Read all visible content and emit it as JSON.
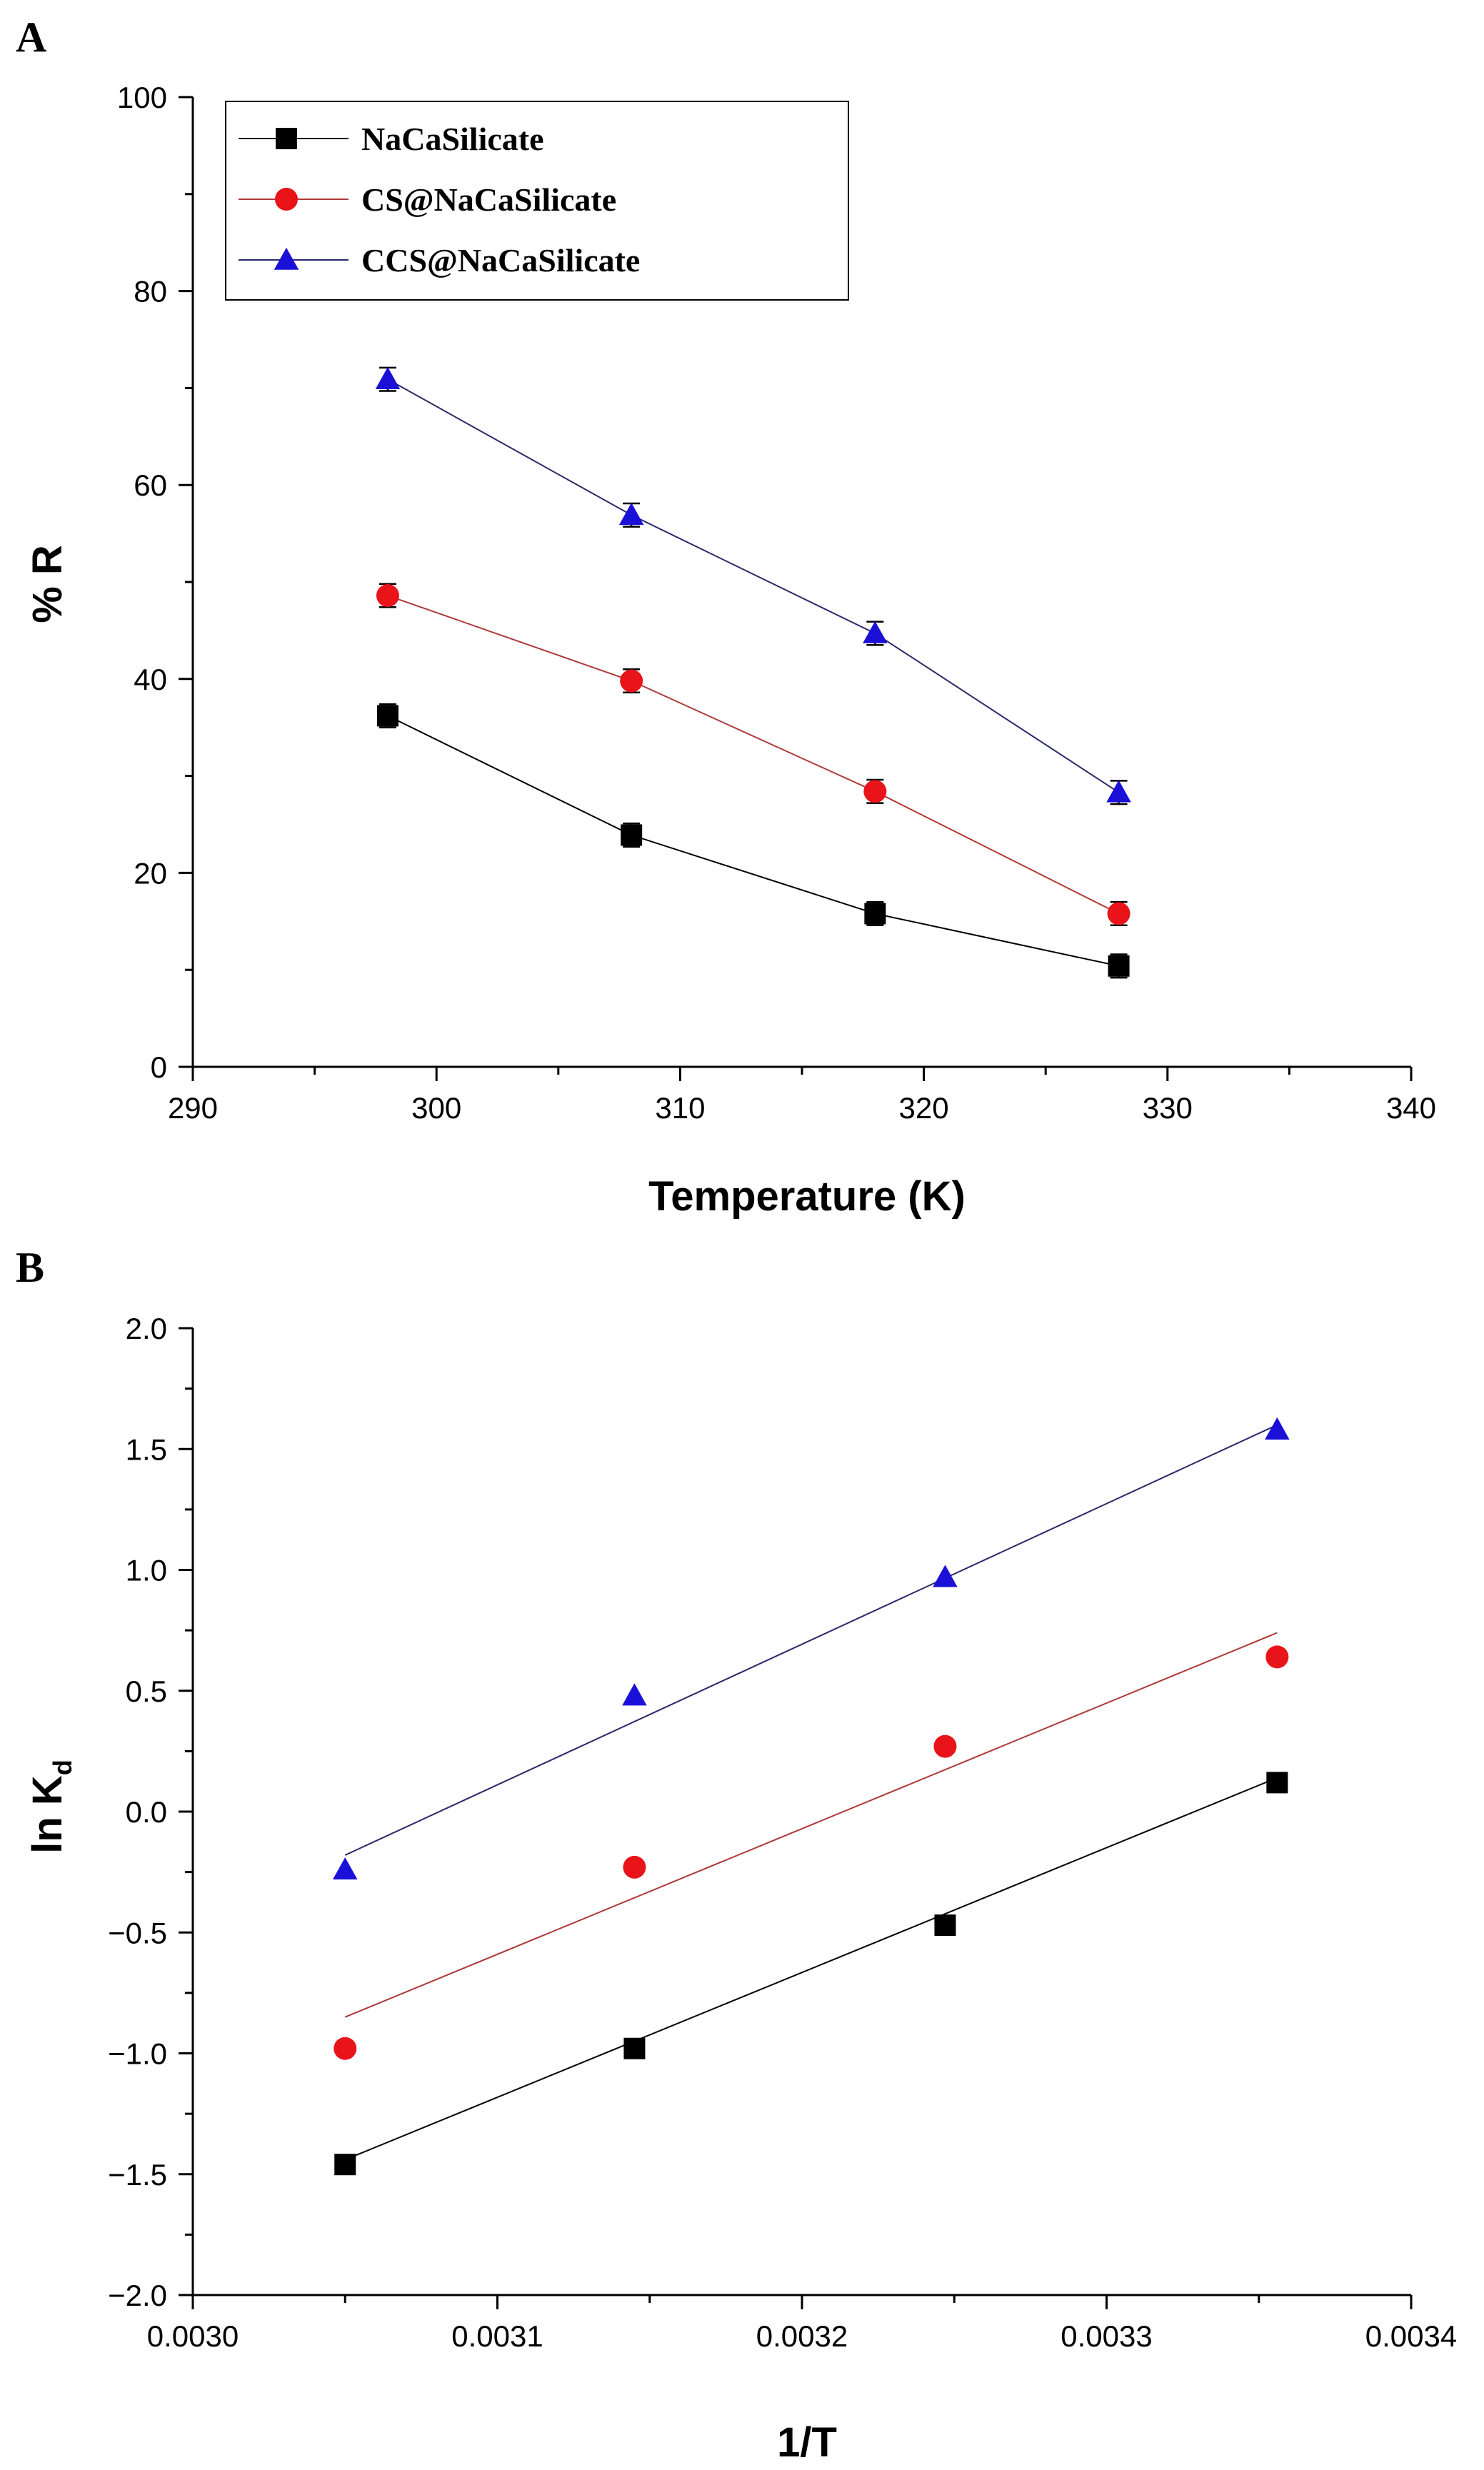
{
  "chart_data": [
    {
      "panel": "A",
      "type": "line",
      "xlabel": "Temperature (K)",
      "ylabel": "% R",
      "xlim": [
        290,
        340
      ],
      "ylim": [
        0,
        100
      ],
      "xticks": [
        290,
        300,
        310,
        320,
        330,
        340
      ],
      "yticks": [
        0,
        20,
        40,
        60,
        80,
        100
      ],
      "xtick_labels": [
        "290",
        "300",
        "310",
        "320",
        "330",
        "340"
      ],
      "ytick_labels": [
        "0",
        "20",
        "40",
        "60",
        "80",
        "100"
      ],
      "x": [
        298,
        308,
        318,
        328
      ],
      "legend_position": "top-left",
      "series": [
        {
          "name": "NaCaSilicate",
          "marker": "square",
          "color": "#000000",
          "line_color": "#000000",
          "values": [
            36.2,
            23.9,
            15.8,
            10.4
          ],
          "error": [
            1.2,
            1.2,
            1.2,
            1.2
          ]
        },
        {
          "name": "CS@NaCaSilicate",
          "marker": "circle",
          "color": "#e8141a",
          "line_color": "#b03a3a",
          "values": [
            48.6,
            39.8,
            28.4,
            15.8
          ],
          "error": [
            1.2,
            1.2,
            1.2,
            1.2
          ]
        },
        {
          "name": "CCS@NaCaSilicate",
          "marker": "triangle",
          "color": "#1a10d8",
          "line_color": "#2a2a6a",
          "values": [
            70.9,
            56.9,
            44.7,
            28.3
          ],
          "error": [
            1.2,
            1.2,
            1.2,
            1.2
          ]
        }
      ]
    },
    {
      "panel": "B",
      "type": "scatter",
      "xlabel": "1/T",
      "ylabel": "ln K",
      "ylabel_subscript": "d",
      "xlim": [
        0.003,
        0.0034
      ],
      "ylim": [
        -2.0,
        2.0
      ],
      "xticks": [
        0.003,
        0.0031,
        0.0032,
        0.0033,
        0.0034
      ],
      "yticks": [
        -2.0,
        -1.5,
        -1.0,
        -0.5,
        0.0,
        0.5,
        1.0,
        1.5,
        2.0
      ],
      "xtick_labels": [
        "0.0030",
        "0.0031",
        "0.0032",
        "0.0033",
        "0.0034"
      ],
      "ytick_labels": [
        "−2.0",
        "−1.5",
        "−1.0",
        "−0.5",
        "0.0",
        "0.5",
        "1.0",
        "1.5",
        "2.0"
      ],
      "x": [
        0.00305,
        0.003145,
        0.003247,
        0.003356
      ],
      "series": [
        {
          "name": "NaCaSilicate",
          "marker": "square",
          "color": "#000000",
          "line_color": "#000000",
          "values": [
            -1.46,
            -0.98,
            -0.47,
            0.12
          ],
          "fit": [
            -1.44,
            0.14
          ]
        },
        {
          "name": "CS@NaCaSilicate",
          "marker": "circle",
          "color": "#e8141a",
          "line_color": "#b03a3a",
          "values": [
            -0.98,
            -0.23,
            0.27,
            0.64
          ],
          "fit": [
            -0.85,
            0.74
          ]
        },
        {
          "name": "CCS@NaCaSilicate",
          "marker": "triangle",
          "color": "#1a10d8",
          "line_color": "#2a2a6a",
          "values": [
            -0.24,
            0.48,
            0.97,
            1.58
          ],
          "fit": [
            -0.18,
            1.6
          ]
        }
      ]
    }
  ]
}
